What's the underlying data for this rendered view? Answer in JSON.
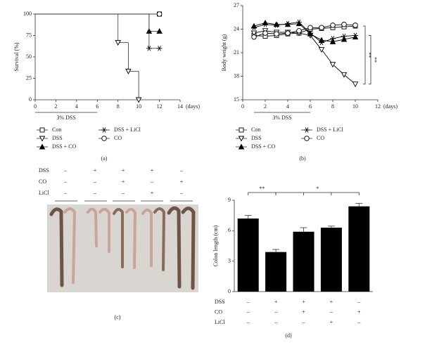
{
  "chart_data": [
    {
      "type": "step",
      "caption": "(a)",
      "ylabel": "Survival (%)",
      "xlabel": "(days)",
      "xlim": [
        0,
        14
      ],
      "xticks": [
        0,
        2,
        4,
        6,
        8,
        10,
        12,
        14
      ],
      "ylim": [
        0,
        100
      ],
      "yticks": [
        0,
        25,
        50,
        75,
        100
      ],
      "treatment_label": "3% DSS",
      "treatment_span": [
        0,
        6
      ],
      "series": [
        {
          "name": "Con",
          "color": "#000000",
          "marker": "square-open",
          "x": [
            0,
            12
          ],
          "values": [
            100,
            100
          ]
        },
        {
          "name": "DSS",
          "color": "#000000",
          "marker": "triangle-down-open",
          "x": [
            0,
            8,
            9,
            10
          ],
          "values": [
            100,
            66.7,
            33.3,
            0
          ]
        },
        {
          "name": "DSS + CO",
          "color": "#000000",
          "marker": "triangle-up-filled",
          "x": [
            0,
            11,
            12
          ],
          "values": [
            100,
            80,
            80
          ]
        },
        {
          "name": "DSS + LiCl",
          "color": "#000000",
          "marker": "star",
          "x": [
            0,
            11,
            12
          ],
          "values": [
            100,
            60,
            60
          ]
        },
        {
          "name": "CO",
          "color": "#000000",
          "marker": "circle-open",
          "x": [
            0,
            12
          ],
          "values": [
            100,
            100
          ]
        }
      ]
    },
    {
      "type": "line",
      "caption": "(b)",
      "ylabel": "Body weight (g)",
      "xlabel": "(days)",
      "xlim": [
        0,
        12
      ],
      "xticks": [
        0,
        2,
        4,
        6,
        8,
        10,
        12
      ],
      "ylim": [
        15,
        27
      ],
      "yticks": [
        15,
        18,
        21,
        24,
        27
      ],
      "treatment_label": "3% DSS",
      "treatment_span": [
        1,
        6
      ],
      "x": [
        1,
        2,
        3,
        4,
        5,
        6,
        7,
        8,
        9,
        10
      ],
      "annotations": [
        "**",
        "**"
      ],
      "series": [
        {
          "name": "Con",
          "color": "#000000",
          "marker": "square-open",
          "values": [
            23.2,
            23.1,
            23.2,
            23.4,
            23.5,
            24.0,
            24.1,
            24.2,
            24.3,
            24.4
          ]
        },
        {
          "name": "DSS",
          "color": "#000000",
          "marker": "triangle-down-open",
          "values": [
            23.5,
            23.8,
            23.6,
            23.6,
            23.5,
            23.2,
            21.4,
            19.5,
            18.2,
            17.0
          ]
        },
        {
          "name": "DSS + CO",
          "color": "#000000",
          "marker": "triangle-up-filled",
          "values": [
            24.4,
            24.8,
            24.6,
            24.6,
            24.7,
            23.4,
            22.6,
            22.4,
            22.7,
            23.0
          ]
        },
        {
          "name": "DSS + LiCl",
          "color": "#000000",
          "marker": "star",
          "values": [
            24.2,
            24.6,
            24.5,
            24.7,
            24.9,
            23.5,
            22.3,
            22.8,
            23.1,
            23.2
          ]
        },
        {
          "name": "CO",
          "color": "#000000",
          "marker": "circle-open",
          "values": [
            23.0,
            23.5,
            23.4,
            23.5,
            23.8,
            24.2,
            24.2,
            24.5,
            24.6,
            24.5
          ]
        }
      ]
    },
    {
      "type": "bar",
      "caption": "(d)",
      "ylabel": "Colon length (cm)",
      "color": "#000000",
      "ylim": [
        0,
        9
      ],
      "yticks": [
        0,
        3,
        6,
        9
      ],
      "categories": [
        null,
        null,
        null,
        null,
        null
      ],
      "values": [
        7.2,
        3.9,
        5.9,
        6.3,
        8.4
      ],
      "errors": [
        0.3,
        0.25,
        0.4,
        0.15,
        0.3
      ],
      "annotations": [
        "**",
        "*"
      ],
      "conditions": [
        {
          "name": "DSS",
          "signs": [
            "–",
            "+",
            "+",
            "+",
            "–"
          ]
        },
        {
          "name": "CO",
          "signs": [
            "–",
            "–",
            "+",
            "–",
            "+"
          ]
        },
        {
          "name": "LiCl",
          "signs": [
            "–",
            "–",
            "–",
            "+",
            "–"
          ]
        }
      ]
    }
  ],
  "photo_panel": {
    "caption": "(c)",
    "conditions": [
      {
        "name": "DSS",
        "signs": [
          "–",
          "+",
          "+",
          "+",
          "–"
        ]
      },
      {
        "name": "CO",
        "signs": [
          "–",
          "–",
          "+",
          "–",
          "+"
        ]
      },
      {
        "name": "LiCl",
        "signs": [
          "–",
          "–",
          "–",
          "+",
          "–"
        ]
      }
    ]
  }
}
